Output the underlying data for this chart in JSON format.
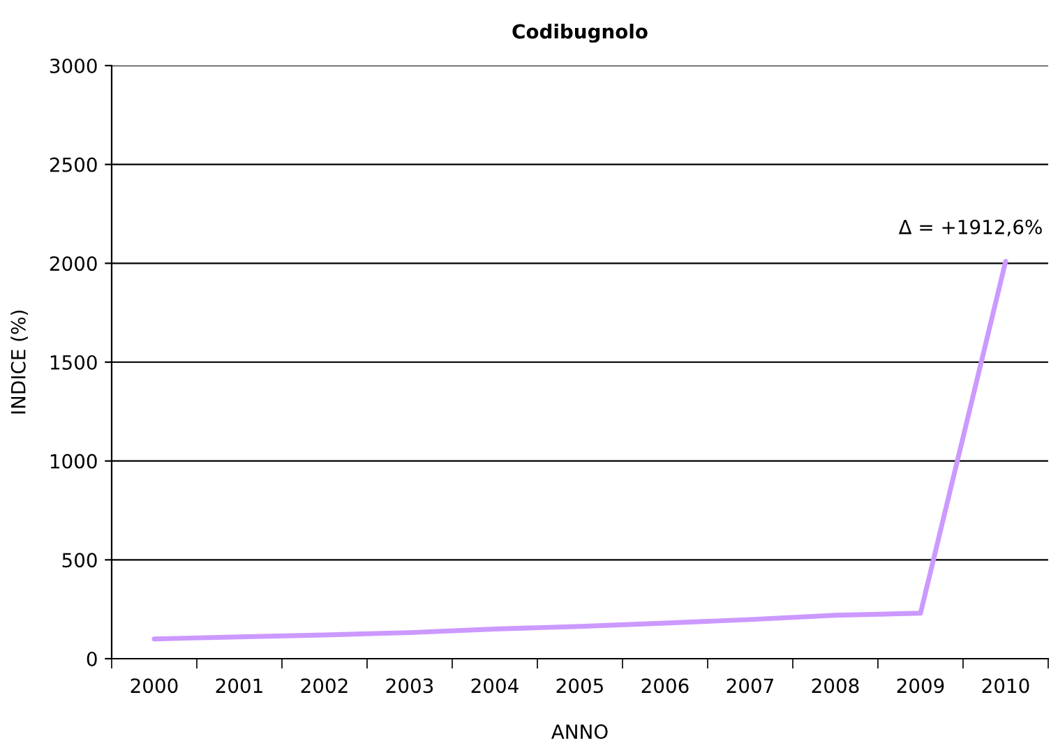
{
  "chart_data": {
    "type": "line",
    "title": "Codibugnolo",
    "xlabel": "ANNO",
    "ylabel": "INDICE (%)",
    "categories": [
      "2000",
      "2001",
      "2002",
      "2003",
      "2004",
      "2005",
      "2006",
      "2007",
      "2008",
      "2009",
      "2010"
    ],
    "series": [
      {
        "color": "#cc99ff",
        "values": [
          100,
          110,
          120,
          132,
          150,
          163,
          180,
          198,
          220,
          230,
          2010
        ]
      }
    ],
    "ylim": [
      0,
      3000
    ],
    "yticks": [
      0,
      500,
      1000,
      1500,
      2000,
      2500,
      3000
    ],
    "grid": "y",
    "legend": false,
    "marker": "none",
    "line_style": "solid",
    "annotations": [
      {
        "text": "Δ = +1912,6%",
        "x": "2010",
        "y": 2010
      }
    ]
  }
}
